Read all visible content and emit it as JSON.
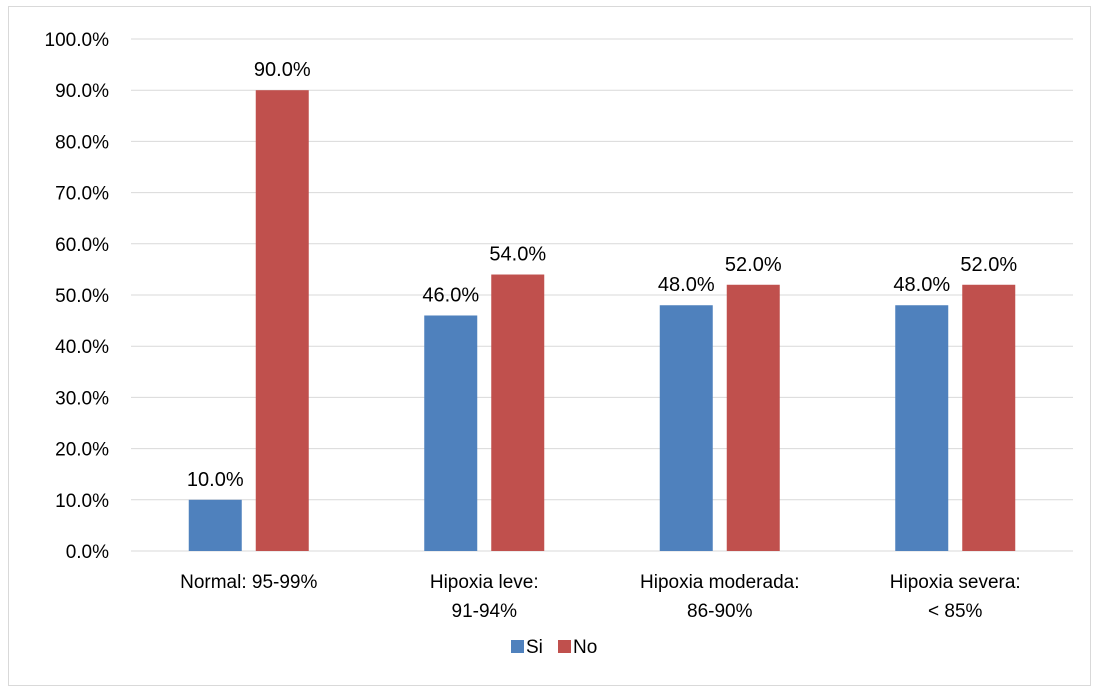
{
  "chart_data": {
    "type": "bar",
    "title": "",
    "xlabel": "",
    "ylabel": "",
    "categories": [
      [
        "Normal: 95-99%"
      ],
      [
        "Hipoxia leve:",
        "91-94%"
      ],
      [
        "Hipoxia moderada:",
        "86-90%"
      ],
      [
        "Hipoxia severa:",
        "< 85%"
      ]
    ],
    "series": [
      {
        "name": "Si",
        "color": "#4f81bd",
        "values": [
          10.0,
          46.0,
          48.0,
          48.0
        ],
        "labels": [
          "10.0%",
          "46.0%",
          "48.0%",
          "48.0%"
        ]
      },
      {
        "name": "No",
        "color": "#c0504d",
        "values": [
          90.0,
          54.0,
          52.0,
          52.0
        ],
        "labels": [
          "90.0%",
          "54.0%",
          "52.0%",
          "52.0%"
        ]
      }
    ],
    "ylim": [
      0,
      100
    ],
    "yticks": [
      0,
      10,
      20,
      30,
      40,
      50,
      60,
      70,
      80,
      90,
      100
    ],
    "ytick_labels": [
      "0.0%",
      "10.0%",
      "20.0%",
      "30.0%",
      "40.0%",
      "50.0%",
      "60.0%",
      "70.0%",
      "80.0%",
      "90.0%",
      "100.0%"
    ],
    "grid": true,
    "gridline_color": "#d9d9d9",
    "legend_position": "bottom"
  }
}
